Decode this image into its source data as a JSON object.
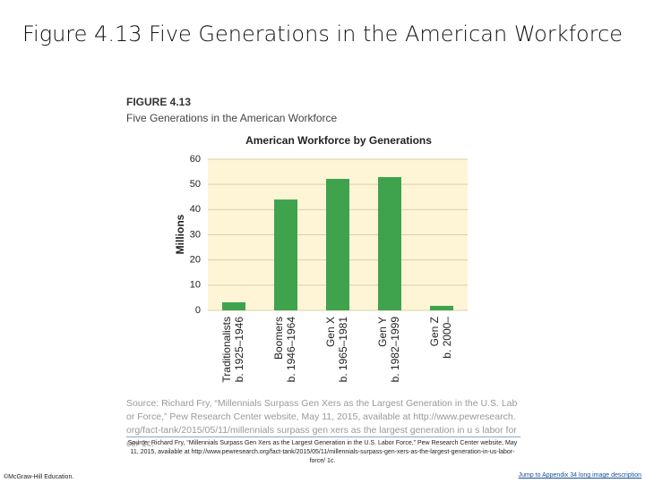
{
  "slide_title": "Figure 4.13   Five Generations in the American Workforce",
  "figure_label": "FIGURE 4.13",
  "figure_subtitle": "Five Generations in the American Workforce",
  "chart_data": {
    "type": "bar",
    "title": "American Workforce by Generations",
    "ylabel": "Millions",
    "categories": [
      "Traditionalists",
      "Boomers",
      "Gen X",
      "Gen Y",
      "Gen Z"
    ],
    "category_sublabels": [
      "b. 1925–1946",
      "b. 1946–1964",
      "b. 1965–1981",
      "b. 1982–1999",
      "b. 2000–"
    ],
    "values": [
      3.2,
      44,
      52.2,
      52.9,
      1.8
    ],
    "color": "#3fa34d",
    "ylim": [
      0,
      60
    ],
    "yticks": [
      0,
      10,
      20,
      30,
      40,
      50,
      60
    ],
    "grid": true
  },
  "figure_source": "Source: Richard Fry, “Millennials Surpass Gen Xers as the Largest Generation in the U.S. Labor Force,” Pew Research Center website, May 11, 2015, available at http://www.pewresearch.org/fact-tank/2015/05/11/millennials surpass gen xers as the largest generation in u s labor force/ 1c.",
  "caption_source": "Source: Richard Fry, “Millennials Surpass Gen Xers as the Largest Generation in the U.S. Labor Force,” Pew Research Center website, May 11, 2015, available at http://www.pewresearch.org/fact-tank/2015/05/11/millennials-surpass-gen-xers-as-the-largest-generation-in-us-labor-force/ 1c.",
  "footer_copyright": "©McGraw-Hill Education.",
  "footer_link": "Jump to Appendix 34 long image description"
}
